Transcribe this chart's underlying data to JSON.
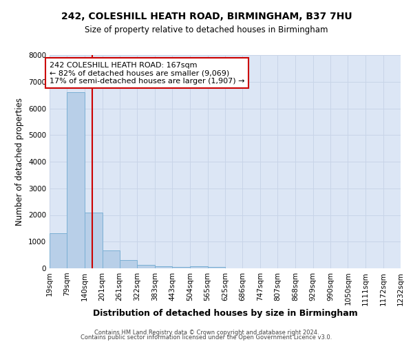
{
  "title1": "242, COLESHILL HEATH ROAD, BIRMINGHAM, B37 7HU",
  "title2": "Size of property relative to detached houses in Birmingham",
  "xlabel": "Distribution of detached houses by size in Birmingham",
  "ylabel": "Number of detached properties",
  "bin_edges": [
    19,
    79,
    140,
    201,
    261,
    322,
    383,
    443,
    504,
    565,
    625,
    686,
    747,
    807,
    868,
    929,
    990,
    1050,
    1111,
    1172,
    1232
  ],
  "bar_heights": [
    1320,
    6600,
    2080,
    660,
    300,
    120,
    80,
    50,
    80,
    60,
    0,
    0,
    0,
    0,
    0,
    0,
    0,
    0,
    0,
    0
  ],
  "bar_color": "#b8cfe8",
  "bar_edge_color": "#7aafd4",
  "red_line_x": 167,
  "annotation_text": "242 COLESHILL HEATH ROAD: 167sqm\n← 82% of detached houses are smaller (9,069)\n17% of semi-detached houses are larger (1,907) →",
  "annotation_box_color": "#ffffff",
  "annotation_border_color": "#cc0000",
  "ylim": [
    0,
    8000
  ],
  "yticks": [
    0,
    1000,
    2000,
    3000,
    4000,
    5000,
    6000,
    7000,
    8000
  ],
  "grid_color": "#c8d4e8",
  "background_color": "#dce6f5",
  "footer1": "Contains HM Land Registry data © Crown copyright and database right 2024.",
  "footer2": "Contains public sector information licensed under the Open Government Licence v3.0."
}
